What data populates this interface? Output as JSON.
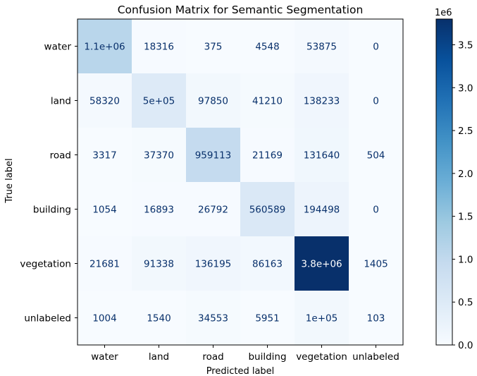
{
  "chart_data": {
    "type": "heatmap",
    "title": "Confusion Matrix for Semantic Segmentation",
    "xlabel": "Predicted label",
    "ylabel": "True label",
    "x_categories": [
      "water",
      "land",
      "road",
      "building",
      "vegetation",
      "unlabeled"
    ],
    "y_categories": [
      "water",
      "land",
      "road",
      "building",
      "vegetation",
      "unlabeled"
    ],
    "values": [
      [
        1100000,
        18316,
        375,
        4548,
        53875,
        0
      ],
      [
        58320,
        500000,
        97850,
        41210,
        138233,
        0
      ],
      [
        3317,
        37370,
        959113,
        21169,
        131640,
        504
      ],
      [
        1054,
        16893,
        26792,
        560589,
        194498,
        0
      ],
      [
        21681,
        91338,
        136195,
        86163,
        3800000,
        1405
      ],
      [
        1004,
        1540,
        34553,
        5951,
        100000,
        103
      ]
    ],
    "cell_labels": [
      [
        "1.1e+06",
        "18316",
        "375",
        "4548",
        "53875",
        "0"
      ],
      [
        "58320",
        "5e+05",
        "97850",
        "41210",
        "138233",
        "0"
      ],
      [
        "3317",
        "37370",
        "959113",
        "21169",
        "131640",
        "504"
      ],
      [
        "1054",
        "16893",
        "26792",
        "560589",
        "194498",
        "0"
      ],
      [
        "21681",
        "91338",
        "136195",
        "86163",
        "3.8e+06",
        "1405"
      ],
      [
        "1004",
        "1540",
        "34553",
        "5951",
        "1e+05",
        "103"
      ]
    ],
    "colormap": "Blues",
    "colormap_stops": [
      "#f7fbff",
      "#deebf7",
      "#c6dbef",
      "#9ecae1",
      "#6baed6",
      "#4292c6",
      "#2171b5",
      "#08519c",
      "#08306b"
    ],
    "colorbar": {
      "range": [
        0,
        3800000
      ],
      "ticks": [
        0,
        500000,
        1000000,
        1500000,
        2000000,
        2500000,
        3000000,
        3500000
      ],
      "tick_labels": [
        "0.0",
        "0.5",
        "1.0",
        "1.5",
        "2.0",
        "2.5",
        "3.0",
        "3.5"
      ],
      "multiplier": "1e6"
    },
    "text_color_dark": "#08306b",
    "text_color_light": "#ffffff"
  }
}
